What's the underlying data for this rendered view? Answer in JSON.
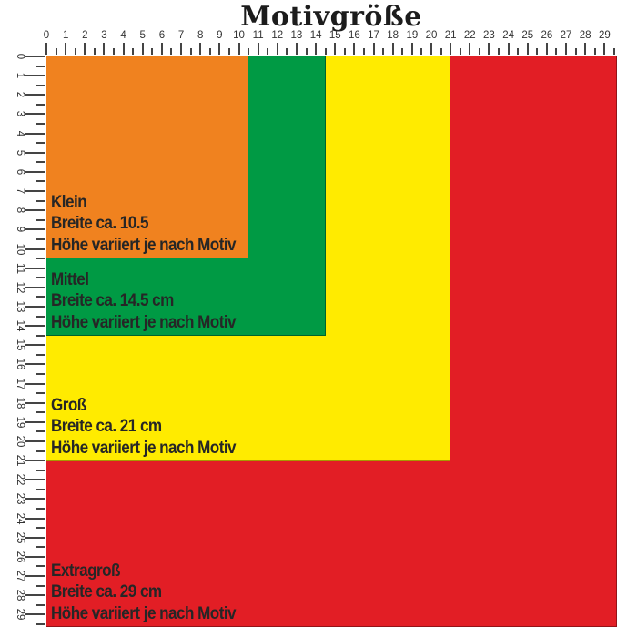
{
  "title": "Motivgröße",
  "rulers": {
    "top": {
      "labels": [
        "0",
        "1",
        "2",
        "3",
        "4",
        "5",
        "6",
        "7",
        "8",
        "9",
        "10",
        "11",
        "12",
        "13",
        "14",
        "15",
        "16",
        "17",
        "18",
        "19",
        "20",
        "21",
        "22",
        "23",
        "24",
        "25",
        "26",
        "27",
        "28",
        "29"
      ]
    },
    "left": {
      "labels": [
        "0",
        "1",
        "2",
        "3",
        "4",
        "5",
        "6",
        "7",
        "8",
        "9",
        "10",
        "11",
        "12",
        "13",
        "14",
        "15",
        "16",
        "17",
        "18",
        "19",
        "20",
        "21",
        "22",
        "23",
        "24",
        "25",
        "26",
        "27",
        "28",
        "29"
      ]
    }
  },
  "sizes": [
    {
      "id": "klein",
      "name": "Klein",
      "width_label": "Breite ca. 10.5",
      "height_label": "Höhe variiert je nach Motiv",
      "color": "#F0821F",
      "units": 10.5
    },
    {
      "id": "mittel",
      "name": "Mittel",
      "width_label": "Breite ca. 14.5 cm",
      "height_label": "Höhe variiert je nach Motiv",
      "color": "#009A44",
      "units": 14.5
    },
    {
      "id": "gross",
      "name": "Groß",
      "width_label": "Breite ca. 21 cm",
      "height_label": "Höhe variiert je nach Motiv",
      "color": "#FFEB00",
      "units": 21
    },
    {
      "id": "extragross",
      "name": "Extragroß",
      "width_label": "Breite ca. 29 cm",
      "height_label": "Höhe variiert je nach Motiv",
      "color": "#E21E25",
      "units": 29
    }
  ]
}
